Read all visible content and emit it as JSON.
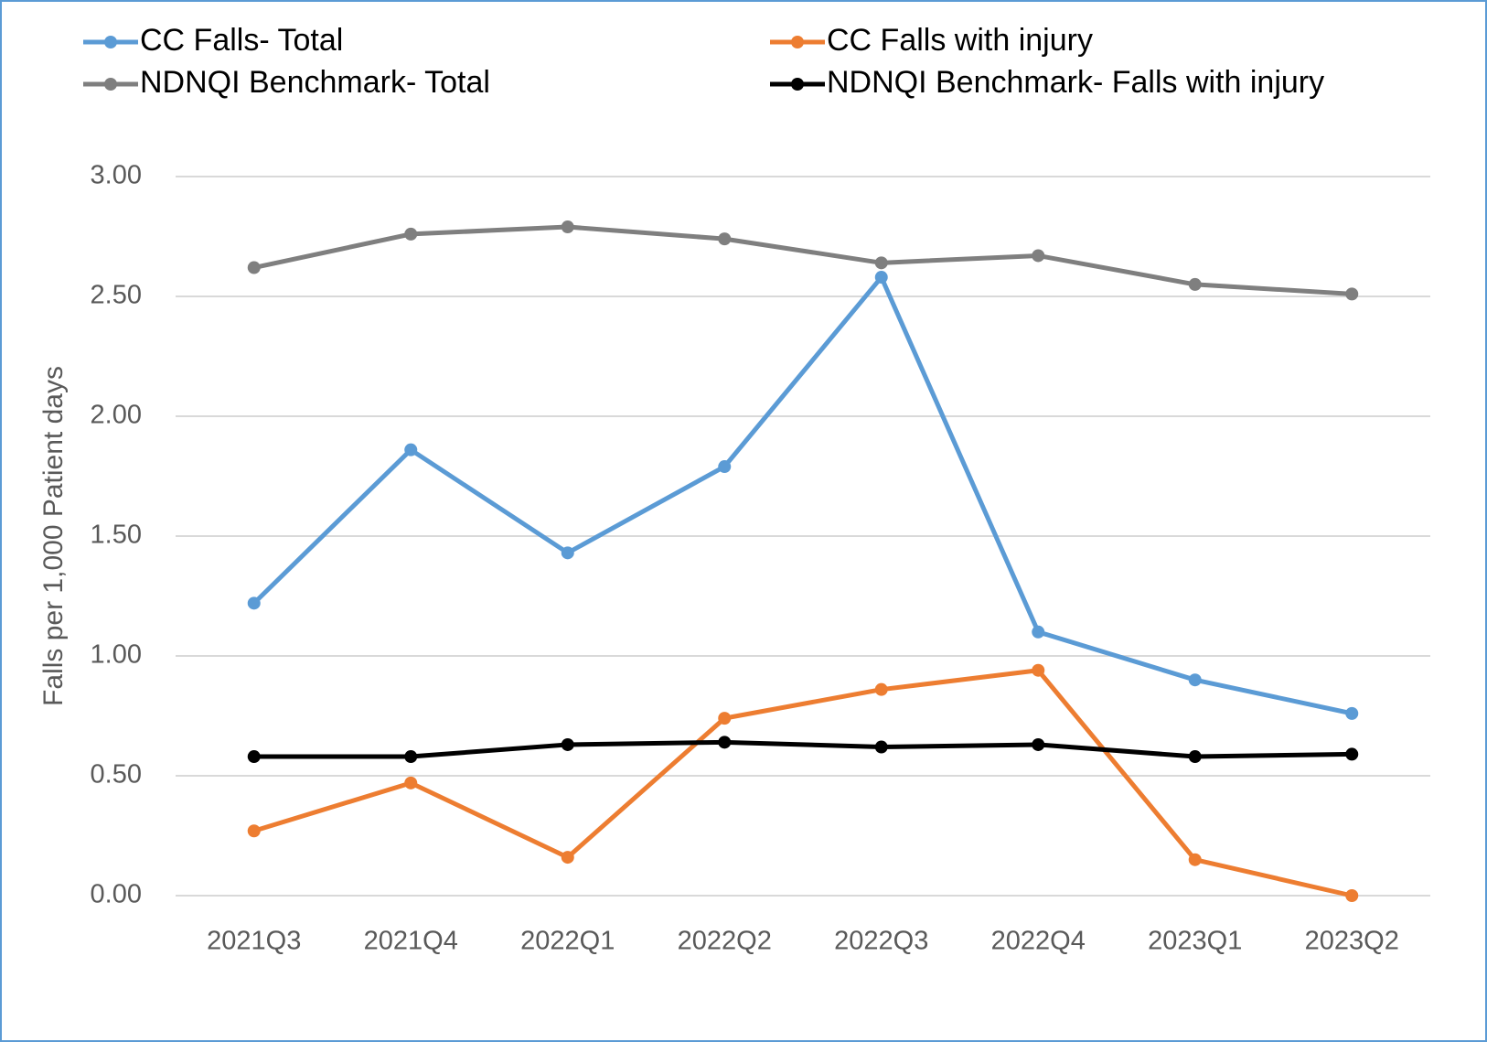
{
  "chart_data": {
    "type": "line",
    "y_label": "Falls per 1,000 Patient days",
    "categories": [
      "2021Q3",
      "2021Q4",
      "2022Q1",
      "2022Q2",
      "2022Q3",
      "2022Q4",
      "2023Q1",
      "2023Q2"
    ],
    "series": [
      {
        "name": "CC Falls- Total",
        "color": "#5b9bd5",
        "values": [
          1.22,
          1.86,
          1.43,
          1.79,
          2.58,
          1.1,
          0.9,
          0.76
        ]
      },
      {
        "name": "CC Falls with injury",
        "color": "#ed7d31",
        "values": [
          0.27,
          0.47,
          0.16,
          0.74,
          0.86,
          0.94,
          0.15,
          0
        ]
      },
      {
        "name": "NDNQI Benchmark- Total",
        "color": "#7f7f7f",
        "values": [
          2.62,
          2.76,
          2.79,
          2.74,
          2.64,
          2.67,
          2.55,
          2.51
        ]
      },
      {
        "name": "NDNQI Benchmark- Falls with injury",
        "color": "#000000",
        "values": [
          0.58,
          0.58,
          0.63,
          0.64,
          0.62,
          0.63,
          0.58,
          0.59
        ]
      }
    ],
    "ylim": [
      0,
      3
    ],
    "yticks": [
      {
        "value": 0,
        "label": "0.00"
      },
      {
        "value": 0.5,
        "label": "0.50"
      },
      {
        "value": 1,
        "label": "1.00"
      },
      {
        "value": 1.5,
        "label": "1.50"
      },
      {
        "value": 2,
        "label": "2.00"
      },
      {
        "value": 2.5,
        "label": "2.50"
      },
      {
        "value": 3,
        "label": "3.00"
      }
    ],
    "grid": true,
    "legend": "top"
  }
}
